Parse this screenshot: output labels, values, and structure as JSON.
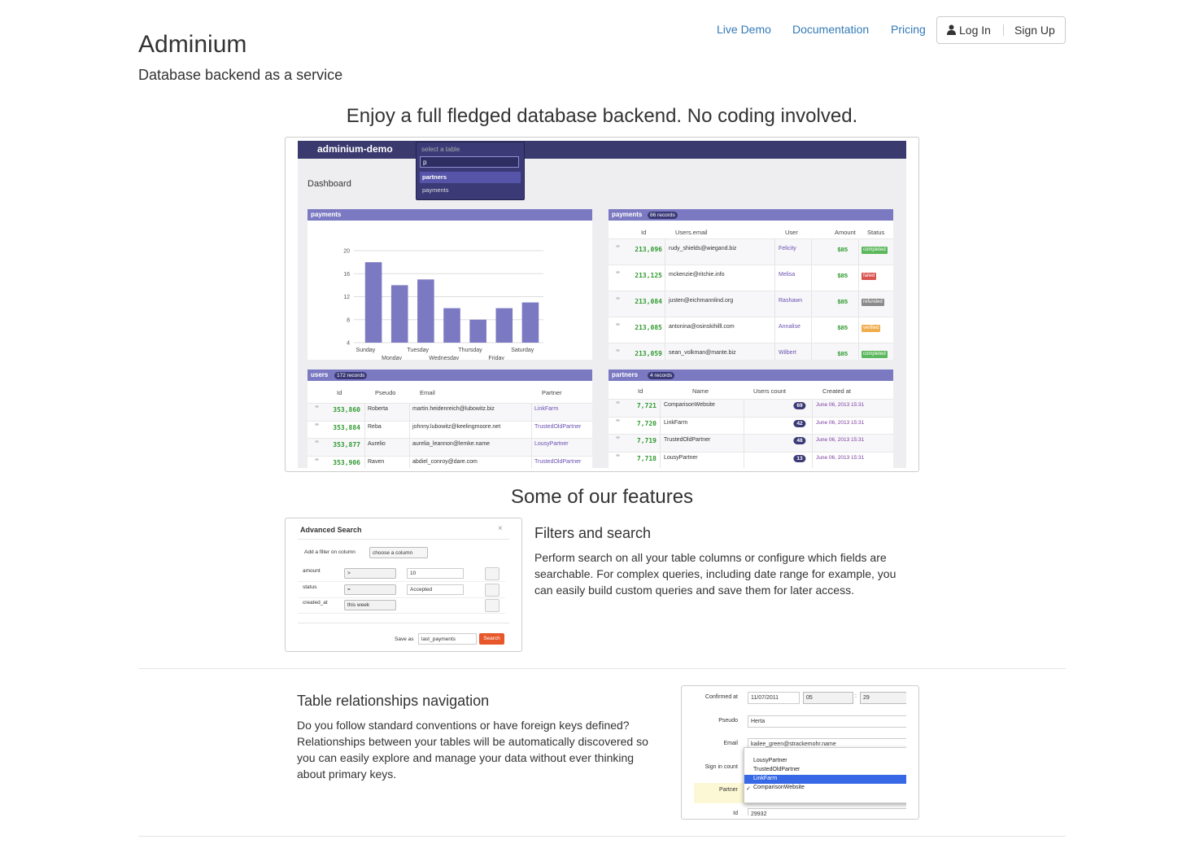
{
  "header": {
    "title": "Adminium",
    "subtitle": "Database backend as a service"
  },
  "nav": {
    "links": [
      "Live Demo",
      "Documentation",
      "Pricing"
    ],
    "login": "Log In",
    "signup": "Sign Up"
  },
  "hero": {
    "heading": "Enjoy a full fledged database backend. No coding involved.",
    "brand": "adminium-demo",
    "table_select": {
      "placeholder": "select a table",
      "query": "p",
      "options": [
        "partners",
        "payments"
      ]
    },
    "page_title": "Dashboard",
    "tables": [
      {
        "title": "payments",
        "badge": "86 records",
        "columns": [
          "Id",
          "Users.email",
          "User",
          "Amount",
          "Status"
        ],
        "rows": [
          [
            "213,096",
            "rudy_shields@wiegand.biz",
            "Felicity",
            "$85",
            "completed"
          ],
          [
            "213,125",
            "mckenzie@ritchie.info",
            "Melisa",
            "$85",
            "failed"
          ],
          [
            "213,084",
            "justen@eichmannlind.org",
            "Rashawn",
            "$85",
            "refunded"
          ],
          [
            "213,085",
            "antonina@osinskihilll.com",
            "Annalise",
            "$85",
            "verified"
          ],
          [
            "213,059",
            "sean_volkman@mante.biz",
            "Wilbert",
            "$85",
            "completed"
          ]
        ],
        "status_colors": [
          "#5cb85c",
          "#d9534f",
          "#8a8a8a",
          "#f0ad4e",
          "#5cb85c"
        ]
      },
      {
        "title": "users",
        "badge": "172 records",
        "columns": [
          "Id",
          "Pseudo",
          "Email",
          "Partner"
        ],
        "rows": [
          [
            "353,860",
            "Roberta",
            "martin.heidenreich@lubowitz.biz",
            "LinkFarm"
          ],
          [
            "353,884",
            "Reba",
            "johnny.lubowitz@keelingmoore.net",
            "TrustedOldPartner"
          ],
          [
            "353,877",
            "Aurelio",
            "aurelia_leannon@lemke.name",
            "LousyPartner"
          ],
          [
            "353,906",
            "Raven",
            "abdiel_conroy@dare.com",
            "TrustedOldPartner"
          ]
        ]
      },
      {
        "title": "partners",
        "badge": "4 records",
        "columns": [
          "Id",
          "Name",
          "Users count",
          "Created at"
        ],
        "rows": [
          [
            "7,721",
            "ComparisonWebsite",
            "69",
            "June 06, 2013 15:31"
          ],
          [
            "7,720",
            "LinkFarm",
            "42",
            "June 06, 2013 15:31"
          ],
          [
            "7,719",
            "TrustedOldPartner",
            "48",
            "June 06, 2013 15:31"
          ],
          [
            "7,718",
            "LousyPartner",
            "13",
            "June 06, 2013 15:31"
          ]
        ]
      }
    ]
  },
  "chart_data": {
    "type": "bar",
    "title": "payments",
    "categories": [
      "Sunday",
      "Monday",
      "Tuesday",
      "Wednesday",
      "Thursday",
      "Friday",
      "Saturday"
    ],
    "values": [
      18,
      14,
      15,
      10,
      8,
      10,
      11
    ],
    "color": "#7b79c2",
    "ylim": [
      4,
      21
    ],
    "yticks": [
      4,
      8,
      12,
      16,
      20
    ],
    "grid": true
  },
  "features": {
    "heading": "Some of our features",
    "items": [
      {
        "title": "Filters and search",
        "text": "Perform search on all your table columns or configure which fields are searchable. For complex queries, including date range for example, you can easily build custom queries and save them for later access."
      },
      {
        "title": "Table relationships navigation",
        "text": "Do you follow standard conventions or have foreign keys defined? Relationships between your tables will be automatically discovered so you can easily explore and manage your data without ever thinking about primary keys."
      }
    ],
    "search_dialog": {
      "title": "Advanced Search",
      "close": "×",
      "add_label": "Add a filter on column",
      "add_select": "choose a column",
      "filters": [
        {
          "column": "amount",
          "operator": ">",
          "value": "10"
        },
        {
          "column": "status",
          "operator": "=",
          "value": "Accepted"
        },
        {
          "column": "created_at",
          "operator": "this week"
        }
      ],
      "save_label": "Save as",
      "save_value": "last_payments",
      "button": "Search"
    },
    "record_form": {
      "fields": [
        {
          "label": "Confirmed at",
          "value": "11/07/2011",
          "hour": "05",
          "separator": ":",
          "minute": "29"
        },
        {
          "label": "Pseudo",
          "value": "Herta"
        },
        {
          "label": "Email",
          "value": "kailee_green@strackemohr.name"
        },
        {
          "label": "Sign in count"
        },
        {
          "label": "Partner"
        },
        {
          "label": "Id",
          "value": "29932"
        }
      ],
      "options": [
        "LousyPartner",
        "TrustedOldPartner",
        "LinkFarm",
        "ComparisonWebsite"
      ],
      "check": "✓"
    }
  }
}
